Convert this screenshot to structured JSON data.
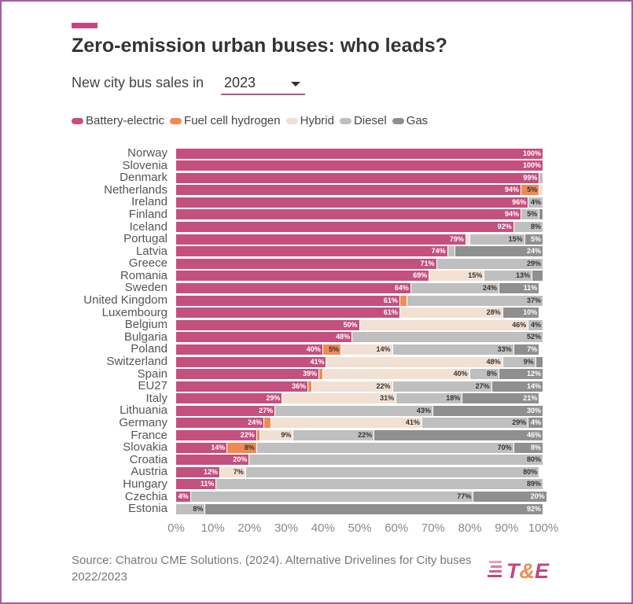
{
  "header": {
    "title": "Zero-emission urban buses: who leads?",
    "subtitle": "New city bus sales in",
    "year_selected": "2023"
  },
  "legend": [
    {
      "label": "Battery-electric",
      "color": "#c4507f"
    },
    {
      "label": "Fuel cell hydrogen",
      "color": "#f08a55"
    },
    {
      "label": "Hybrid",
      "color": "#f2e0d3"
    },
    {
      "label": "Diesel",
      "color": "#bfbfbf"
    },
    {
      "label": "Gas",
      "color": "#8f8f8f"
    }
  ],
  "footer": {
    "source": "Source: Chatrou CME Solutions. (2024). Alternative Drivelines for City buses 2022/2023",
    "logo_text": "T&E"
  },
  "chart_data": {
    "type": "bar",
    "orientation": "horizontal-stacked-100",
    "title": "Zero-emission urban buses: who leads?",
    "xlabel": "",
    "ylabel": "",
    "xlim": [
      0,
      100
    ],
    "x_ticks": [
      "0%",
      "10%",
      "20%",
      "30%",
      "40%",
      "50%",
      "60%",
      "70%",
      "80%",
      "90%",
      "100%"
    ],
    "series_names": [
      "Battery-electric",
      "Fuel cell hydrogen",
      "Hybrid",
      "Diesel",
      "Gas"
    ],
    "categories": [
      "Norway",
      "Slovenia",
      "Denmark",
      "Netherlands",
      "Ireland",
      "Finland",
      "Iceland",
      "Portugal",
      "Latvia",
      "Greece",
      "Romania",
      "Sweden",
      "United Kingdom",
      "Luxembourg",
      "Belgium",
      "Bulgaria",
      "Poland",
      "Switzerland",
      "Spain",
      "EU27",
      "Italy",
      "Lithuania",
      "Germany",
      "France",
      "Slovakia",
      "Croatia",
      "Austria",
      "Hungary",
      "Czechia",
      "Estonia"
    ],
    "values": [
      [
        100,
        0,
        0,
        0,
        0
      ],
      [
        100,
        0,
        0,
        0,
        0
      ],
      [
        99,
        0,
        0,
        1,
        0
      ],
      [
        94,
        5,
        1,
        0,
        0
      ],
      [
        96,
        0,
        0,
        4,
        0
      ],
      [
        94,
        0,
        0,
        5,
        1
      ],
      [
        92,
        0,
        0,
        8,
        0
      ],
      [
        79,
        0,
        1,
        15,
        5
      ],
      [
        74,
        0,
        0,
        2,
        24
      ],
      [
        71,
        0,
        0,
        29,
        0
      ],
      [
        69,
        0,
        15,
        13,
        3
      ],
      [
        64,
        0,
        0,
        24,
        11
      ],
      [
        61,
        2,
        0,
        37,
        0
      ],
      [
        61,
        0,
        28,
        0,
        10
      ],
      [
        50,
        0,
        46,
        4,
        0
      ],
      [
        48,
        0,
        0,
        52,
        0
      ],
      [
        40,
        5,
        14,
        33,
        7
      ],
      [
        41,
        0,
        48,
        9,
        2
      ],
      [
        39,
        1,
        40,
        8,
        12
      ],
      [
        36,
        1,
        22,
        27,
        14
      ],
      [
        29,
        0,
        31,
        18,
        21
      ],
      [
        27,
        0,
        0,
        43,
        30
      ],
      [
        24,
        2,
        41,
        29,
        4
      ],
      [
        22,
        1,
        9,
        22,
        46
      ],
      [
        14,
        8,
        0,
        70,
        8
      ],
      [
        20,
        0,
        0,
        80,
        0
      ],
      [
        12,
        0,
        7,
        80,
        0
      ],
      [
        11,
        0,
        0,
        89,
        0
      ],
      [
        4,
        0,
        0,
        77,
        20
      ],
      [
        0,
        0,
        0,
        8,
        92
      ]
    ],
    "label_colors": [
      "#ffffff",
      "#333333",
      "#333333",
      "#333333",
      "#ffffff"
    ]
  }
}
